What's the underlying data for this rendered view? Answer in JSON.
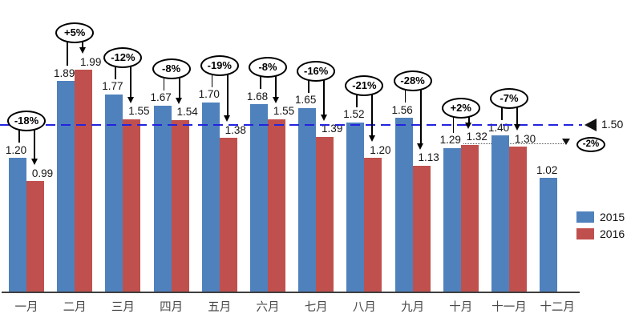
{
  "chart_data": {
    "type": "bar",
    "title": "",
    "xlabel": "",
    "ylabel": "",
    "grid": false,
    "ylim": [
      0,
      2.2
    ],
    "categories": [
      "一月",
      "二月",
      "三月",
      "四月",
      "五月",
      "六月",
      "七月",
      "八月",
      "九月",
      "十月",
      "十一月",
      "十二月"
    ],
    "series": [
      {
        "name": "2015",
        "color": "#4F81BD",
        "values": [
          1.2,
          1.89,
          1.77,
          1.67,
          1.7,
          1.68,
          1.65,
          1.52,
          1.56,
          1.29,
          1.4,
          1.02
        ]
      },
      {
        "name": "2016",
        "color": "#C0504D",
        "values": [
          0.99,
          1.99,
          1.55,
          1.54,
          1.38,
          1.55,
          1.39,
          1.2,
          1.13,
          1.32,
          1.3,
          null
        ]
      }
    ],
    "pct_change_labels": [
      "-18%",
      "+5%",
      "-12%",
      "-8%",
      "-19%",
      "-8%",
      "-16%",
      "-21%",
      "-28%",
      "+2%",
      "-7%",
      null
    ],
    "reference_line": {
      "value": 1.5,
      "label": "1.50",
      "color": "#2323DF",
      "style": "dashed"
    },
    "connector_annotation": {
      "label": "-2%",
      "series": "2016",
      "from_category": "十月",
      "to_category": "十一月",
      "style": "dotted"
    },
    "legend": {
      "position": "right",
      "entries": [
        {
          "label": "2015",
          "color": "#4F81BD"
        },
        {
          "label": "2016",
          "color": "#C0504D"
        }
      ]
    }
  }
}
